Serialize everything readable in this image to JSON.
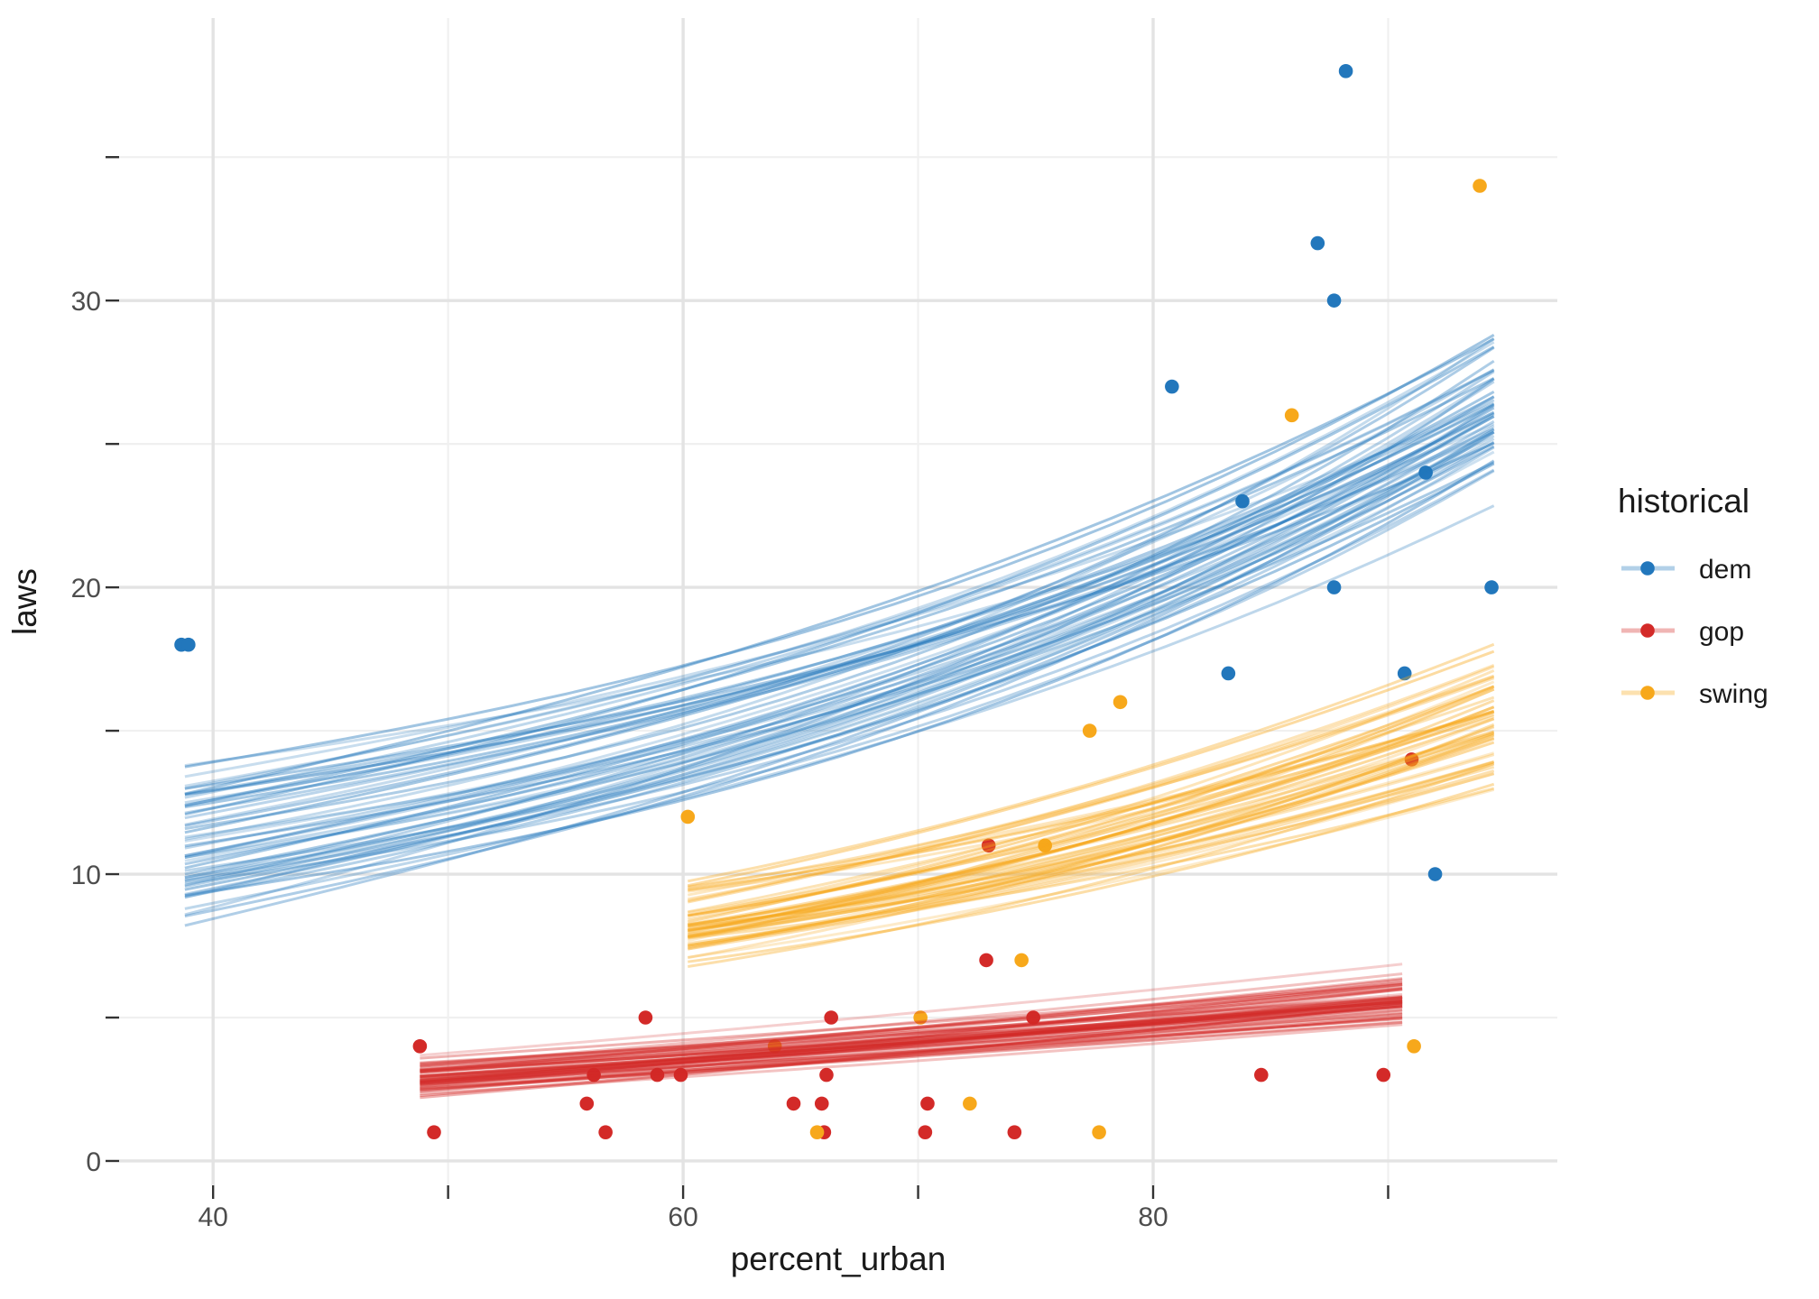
{
  "chart_data": {
    "type": "scatter",
    "title": "",
    "xlabel": "percent_urban",
    "ylabel": "laws",
    "x_ticks": {
      "major": [
        40,
        60,
        80
      ],
      "minor": [
        50,
        70,
        90
      ]
    },
    "y_ticks": {
      "major": [
        0,
        10,
        20,
        30
      ],
      "minor": [
        5,
        15,
        25,
        35
      ]
    },
    "x_range_panel": [
      36.0,
      97.2
    ],
    "y_range_panel": [
      -0.85,
      39.85
    ],
    "grid": true,
    "legend_position": "right",
    "series": [
      {
        "name": "dem",
        "color": "#2277bc",
        "points": [
          [
            38.65,
            18
          ],
          [
            38.95,
            18
          ],
          [
            80.8,
            27
          ],
          [
            83.2,
            17
          ],
          [
            83.8,
            23
          ],
          [
            87.0,
            32
          ],
          [
            87.7,
            30
          ],
          [
            87.7,
            20
          ],
          [
            88.2,
            38
          ],
          [
            90.7,
            17
          ],
          [
            91.6,
            24
          ],
          [
            92.0,
            10
          ],
          [
            94.4,
            20
          ]
        ]
      },
      {
        "name": "gop",
        "color": "#d32a28",
        "points": [
          [
            48.8,
            4
          ],
          [
            49.4,
            1
          ],
          [
            55.9,
            2
          ],
          [
            56.2,
            3
          ],
          [
            56.7,
            1
          ],
          [
            58.4,
            5
          ],
          [
            58.9,
            3
          ],
          [
            59.9,
            3
          ],
          [
            64.7,
            2
          ],
          [
            65.9,
            2
          ],
          [
            66.0,
            1
          ],
          [
            66.1,
            3
          ],
          [
            66.3,
            5
          ],
          [
            70.3,
            1
          ],
          [
            70.4,
            2
          ],
          [
            72.9,
            7
          ],
          [
            73.0,
            11
          ],
          [
            74.1,
            1
          ],
          [
            74.9,
            5
          ],
          [
            84.6,
            3
          ],
          [
            89.8,
            3
          ],
          [
            91.0,
            14
          ]
        ]
      },
      {
        "name": "swing",
        "color": "#f7a81b",
        "points": [
          [
            60.2,
            12
          ],
          [
            63.9,
            4
          ],
          [
            65.7,
            1
          ],
          [
            70.1,
            5
          ],
          [
            72.2,
            2
          ],
          [
            74.4,
            7
          ],
          [
            75.4,
            11
          ],
          [
            77.3,
            15
          ],
          [
            77.7,
            1
          ],
          [
            78.6,
            16
          ],
          [
            85.9,
            26
          ],
          [
            91.1,
            4
          ],
          [
            93.9,
            34
          ]
        ]
      }
    ],
    "spaghetti": [
      {
        "name": "dem",
        "seed": 101,
        "n": 55,
        "x_start": 38.8,
        "x_end": 94.5,
        "y_start": [
          7.4,
          14.6
        ],
        "y_end": [
          21.5,
          31.0
        ],
        "curve": 0.45,
        "pow": 2.6,
        "color": "#2277bc",
        "alpha": 0.27
      },
      {
        "name": "gop",
        "seed": 202,
        "n": 55,
        "x_start": 48.8,
        "x_end": 90.6,
        "y_start": [
          2.0,
          3.8
        ],
        "y_end": [
          4.2,
          7.0
        ],
        "curve": 0.12,
        "pow": 2.0,
        "color": "#d32a28",
        "alpha": 0.27
      },
      {
        "name": "swing",
        "seed": 303,
        "n": 55,
        "x_start": 60.2,
        "x_end": 94.5,
        "y_start": [
          6.4,
          9.9
        ],
        "y_end": [
          11.5,
          18.7
        ],
        "curve": 0.38,
        "pow": 2.0,
        "color": "#f7a81b",
        "alpha": 0.27
      }
    ],
    "legend": {
      "title": "historical",
      "entries": [
        {
          "label": "dem"
        },
        {
          "label": "gop"
        },
        {
          "label": "swing"
        }
      ]
    }
  }
}
